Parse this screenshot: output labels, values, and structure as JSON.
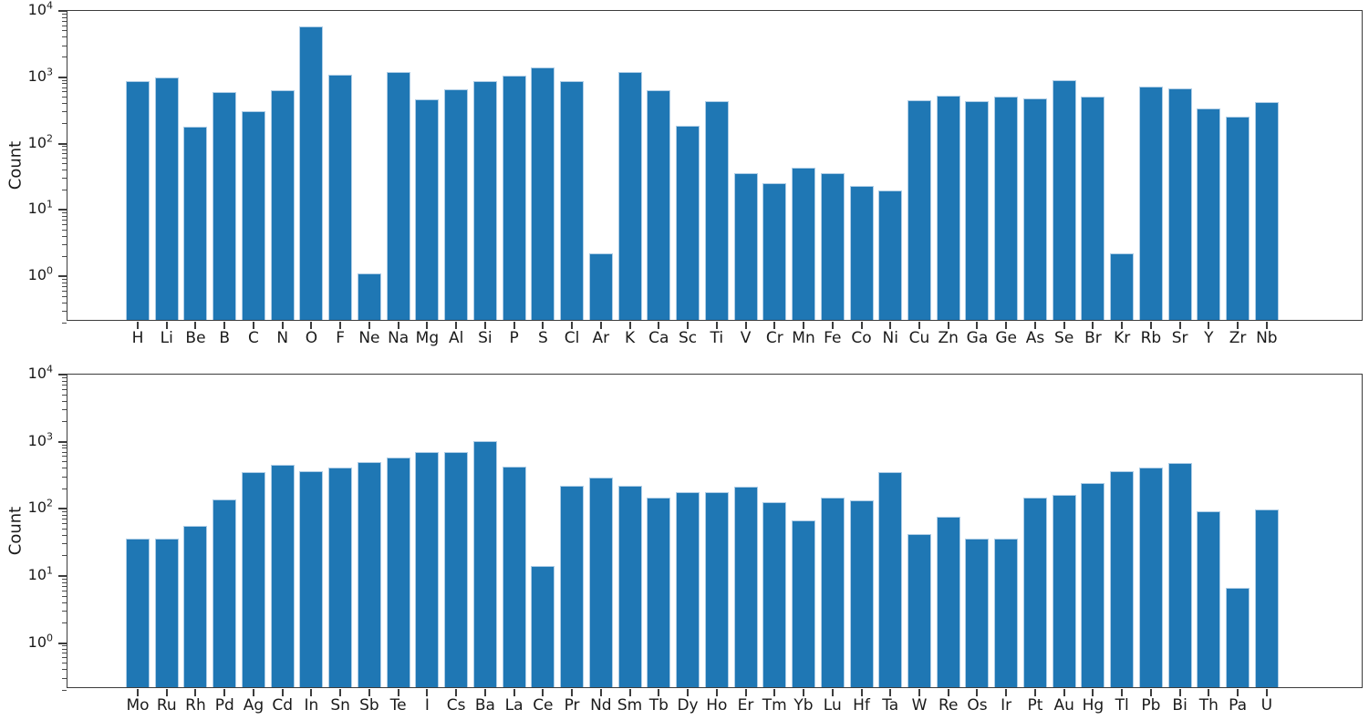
{
  "figure": {
    "bar_color": "#1f77b4",
    "bar_edge_color": "#aecde6",
    "axis_color": "#3c3c3c",
    "text_color": "#1a1a1a",
    "background": "#ffffff"
  },
  "chart_data": [
    {
      "type": "bar",
      "title": "",
      "xlabel": "",
      "ylabel": "Count",
      "yscale": "log",
      "ylim": [
        0.2,
        10000
      ],
      "ytick_exponents": [
        0,
        1,
        2,
        3,
        4
      ],
      "grid": false,
      "legend": null,
      "categories": [
        "H",
        "Li",
        "Be",
        "B",
        "C",
        "N",
        "O",
        "F",
        "Ne",
        "Na",
        "Mg",
        "Al",
        "Si",
        "P",
        "S",
        "Cl",
        "Ar",
        "K",
        "Ca",
        "Sc",
        "Ti",
        "V",
        "Cr",
        "Mn",
        "Fe",
        "Co",
        "Ni",
        "Cu",
        "Zn",
        "Ga",
        "Ge",
        "As",
        "Se",
        "Br",
        "Kr",
        "Rb",
        "Sr",
        "Y",
        "Zr",
        "Nb"
      ],
      "values": [
        800,
        900,
        165,
        550,
        280,
        580,
        5300,
        1000,
        1,
        1080,
        420,
        600,
        800,
        970,
        1300,
        800,
        2,
        1080,
        580,
        170,
        400,
        33,
        23,
        40,
        33,
        21,
        18,
        410,
        480,
        400,
        460,
        440,
        830,
        460,
        2,
        650,
        620,
        310,
        235,
        380
      ]
    },
    {
      "type": "bar",
      "title": "",
      "xlabel": "",
      "ylabel": "Count",
      "yscale": "log",
      "ylim": [
        0.2,
        10000
      ],
      "ytick_exponents": [
        0,
        1,
        2,
        3,
        4
      ],
      "grid": false,
      "legend": null,
      "categories": [
        "Mo",
        "Ru",
        "Rh",
        "Pd",
        "Ag",
        "Cd",
        "In",
        "Sn",
        "Sb",
        "Te",
        "I",
        "Cs",
        "Ba",
        "La",
        "Ce",
        "Pr",
        "Nd",
        "Sm",
        "Tb",
        "Dy",
        "Ho",
        "Er",
        "Tm",
        "Yb",
        "Lu",
        "Hf",
        "Ta",
        "W",
        "Re",
        "Os",
        "Ir",
        "Pt",
        "Au",
        "Hg",
        "Tl",
        "Pb",
        "Bi",
        "Th",
        "Pa",
        "U"
      ],
      "values": [
        33,
        33,
        50,
        125,
        320,
        410,
        335,
        375,
        460,
        530,
        630,
        630,
        930,
        390,
        13,
        200,
        265,
        200,
        133,
        162,
        162,
        192,
        113,
        61,
        135,
        120,
        320,
        38,
        70,
        33,
        33,
        135,
        145,
        220,
        330,
        370,
        440,
        85,
        6,
        90
      ]
    }
  ]
}
